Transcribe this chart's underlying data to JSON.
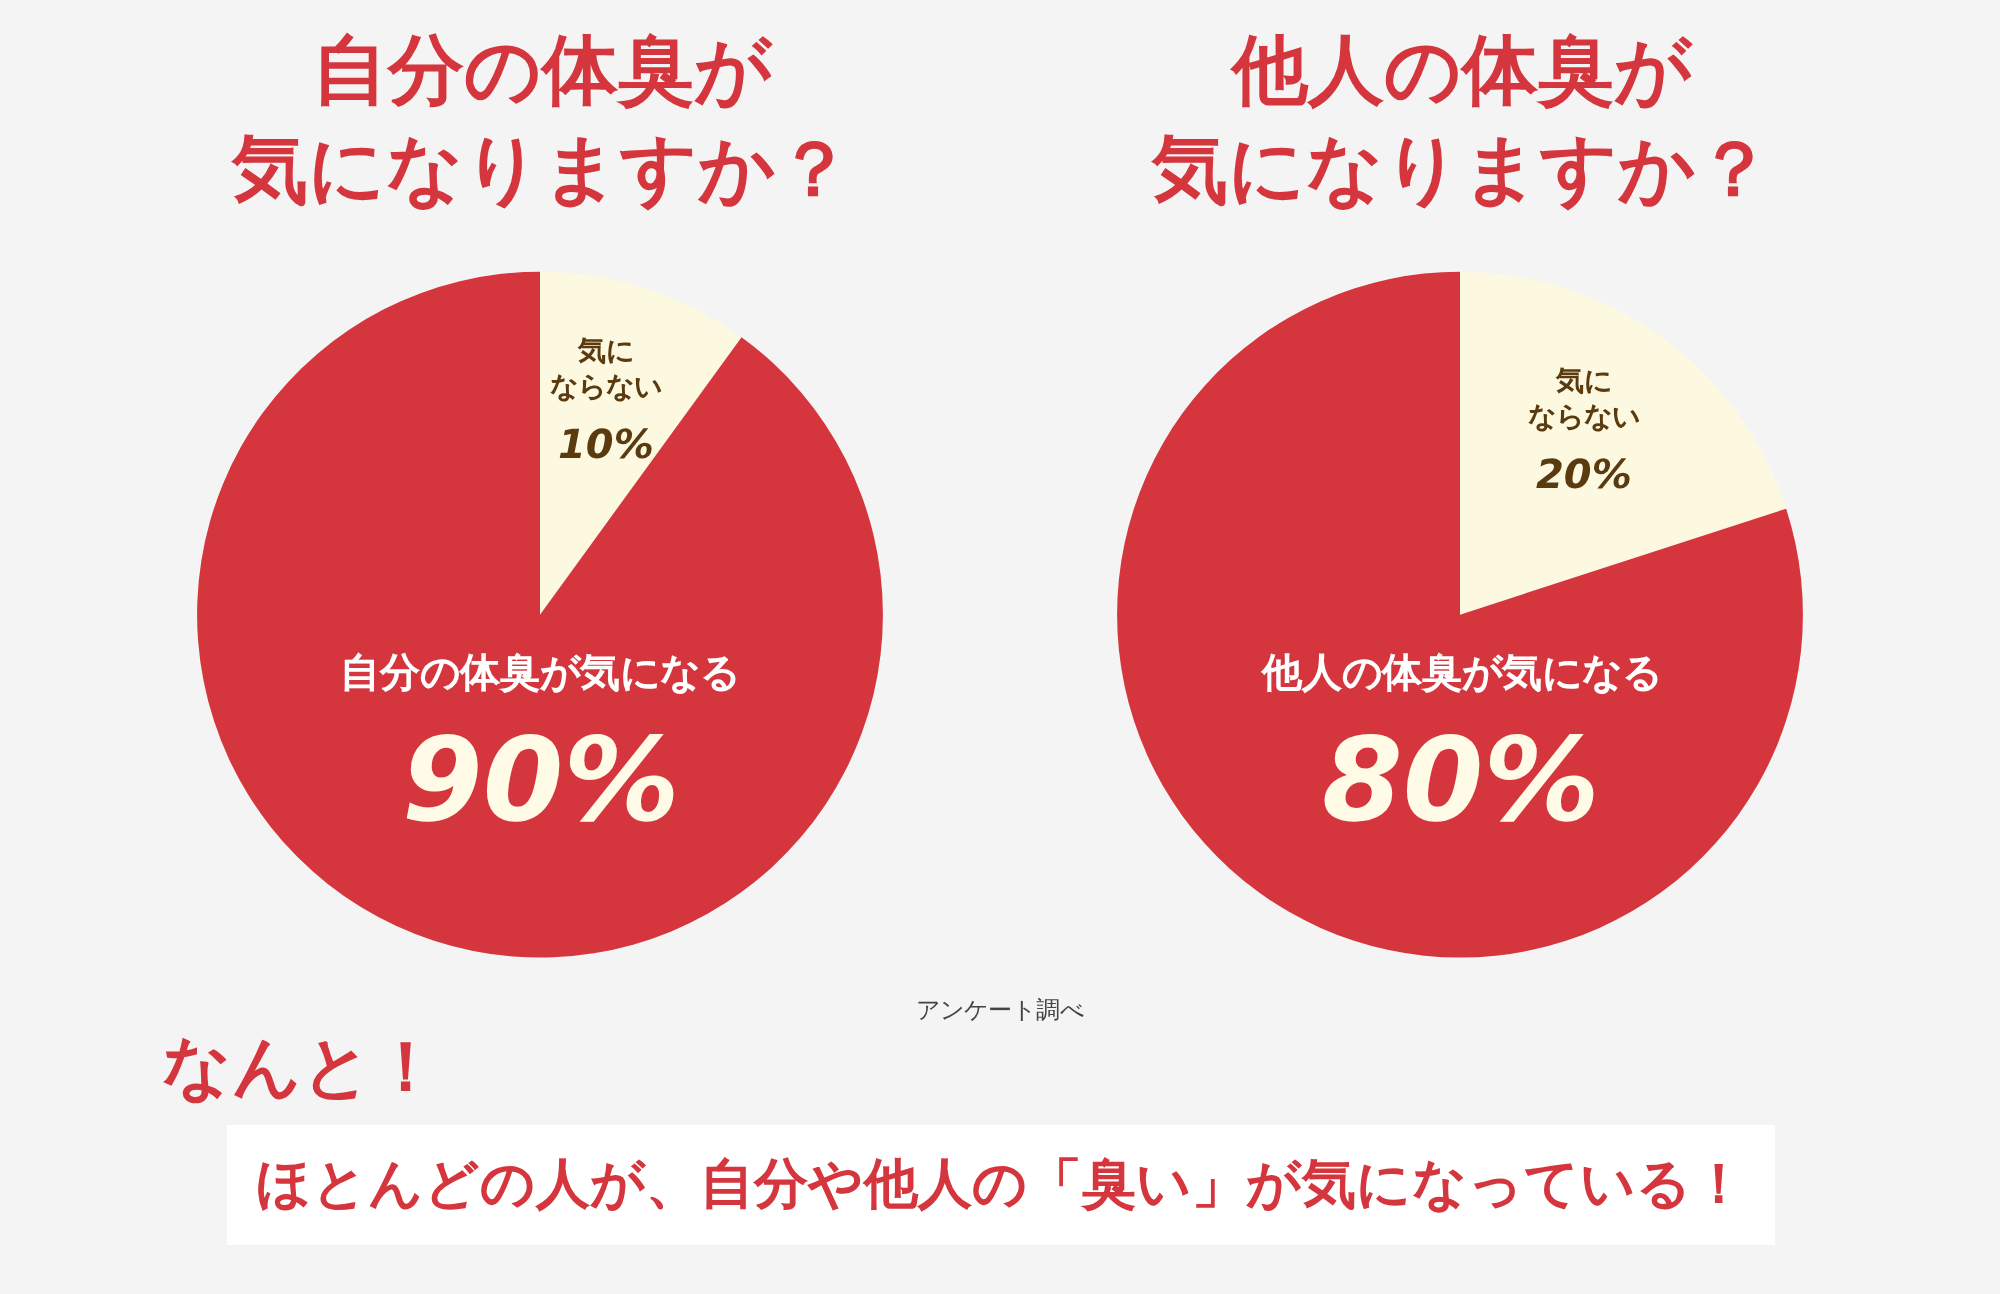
{
  "chart_data": [
    {
      "type": "pie",
      "title": "自分の体臭が気になりますか？",
      "categories": [
        "気にならない",
        "自分の体臭が気になる"
      ],
      "values": [
        10,
        90
      ],
      "value_labels": [
        "10%",
        "90%"
      ],
      "colors": [
        "#fdf9e1",
        "#d5353d"
      ]
    },
    {
      "type": "pie",
      "title": "他人の体臭が気になりますか？",
      "categories": [
        "気にならない",
        "他人の体臭が気になる"
      ],
      "values": [
        20,
        80
      ],
      "value_labels": [
        "20%",
        "80%"
      ],
      "colors": [
        "#fdf9e1",
        "#d5353d"
      ]
    },
    {
      "type": "other",
      "annotations": [
        "アンケート調べ",
        "なんと！",
        "ほとんどの人が、自分や他人の「臭い」が気になっている！"
      ]
    }
  ]
}
